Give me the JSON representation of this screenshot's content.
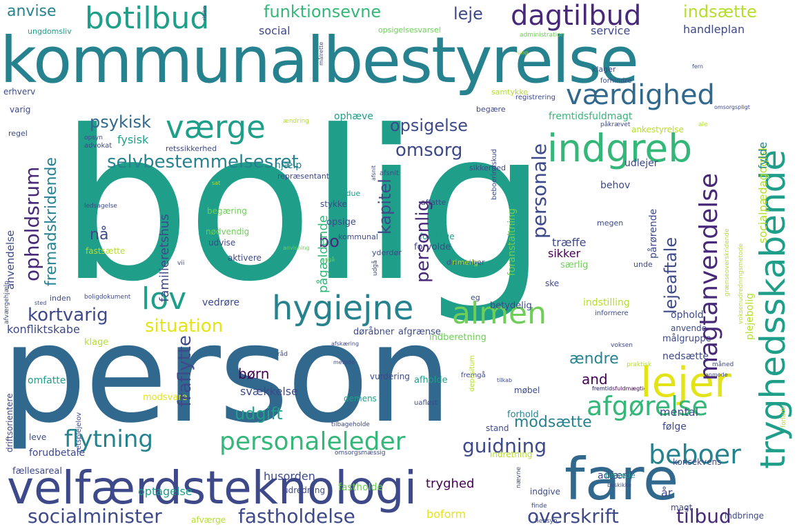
{
  "words": {
    "bolig": "bolig",
    "person": "person",
    "kommunalbestyrelse": "kommunalbestyrelse",
    "velfaerdsteknologi": "velfærdsteknologi",
    "fare": "fare",
    "botilbud": "botilbud",
    "fremtidsfuldmaegtig": "fremtidsfuldmægtig",
    "vaerdighed": "værdighed",
    "vaerge": "værge",
    "indgreb": "indgreb",
    "hygiejne": "hygiejne",
    "almen": "almen",
    "lejer": "lejer",
    "lov": "lov",
    "dagtilbud": "dagtilbud",
    "tryghedsskabende": "tryghedsskabende",
    "magtanvendelse": "magtanvendelse",
    "afgorelse": "afgørelse",
    "beboer": "beboer",
    "personaleleder": "personaleleder",
    "flytning": "flytning",
    "socialminister": "socialminister",
    "fastholdelse": "fastholdelse",
    "overskrift": "overskrift",
    "tilbud": "tilbud",
    "guidning": "guidning",
    "situation": "situation",
    "kortvarig": "kortvarig",
    "selvbestemmelsesret": "selvbestemmelsesret",
    "omsorg": "omsorg",
    "psykisk": "psykisk",
    "opsigelse": "opsigelse",
    "funktionsevne": "funktionsevne",
    "leje": "leje",
    "indsaette": "indsætte",
    "anvise": "anvise",
    "udgift": "udgift",
    "bo": "bo",
    "modsaette": "modsætte",
    "aendre": "ændre",
    "and": "and",
    "born": "børn",
    "svaekkelse": "svækkelse",
    "husorden": "husorden",
    "tryghed": "tryghed",
    "adfaerd": "adfærd",
    "optagelse": "optagelse",
    "boform": "boform",
    "fastholde": "fastholde",
    "udredning": "udredning",
    "konfliktskabe": "konfliktskabe",
    "vedrore": "vedrøre",
    "fysisk": "fysisk",
    "social": "social",
    "service": "service",
    "handleplan": "handleplan",
    "erhverv": "erhverv",
    "ophaeve": "ophæve",
    "hjaelp": "hjælp",
    "retssikkerhed": "retssikkerhed",
    "fremtidsfuldmagt": "fremtidsfuldmagt",
    "ankestyrelse": "ankestyrelse",
    "udlejer": "udlejer",
    "behov": "behov",
    "samtykke": "samtykke",
    "traeffe": "træffe",
    "sikker": "sikker",
    "saerlig": "særlig",
    "ske": "ske",
    "ophold": "ophold",
    "anvende": "anvende",
    "malgruppe": "målgruppe",
    "nedsaette": "nedsætte",
    "mental": "mental",
    "folge": "følge",
    "indstilling": "indstilling",
    "betydelig": "betydelig",
    "indberetning": "indberetning",
    "doraabner": "døråbner",
    "afgraense": "afgrænse",
    "afholde": "afholde",
    "forhold": "forhold",
    "mobel": "møbel",
    "vurdering": "vurdering",
    "demens": "demens",
    "modsvare": "modsvare",
    "omfatte": "omfatte",
    "leve": "leve",
    "forudbetale": "forudbetale",
    "faellesareal": "fællesareal",
    "klage": "klage",
    "inden": "inden",
    "eg": "eg",
    "opsige": "opsige",
    "begaering": "begæring",
    "nodvendig": "nødvendig",
    "udvise": "udvise",
    "aktivere": "aktivere",
    "fastsaette": "fastsætte",
    "yderdor": "yderdør",
    "forvolde": "forvolde",
    "foretage": "foretage",
    "december": "december",
    "rimelig": "rimelig",
    "unde": "unde",
    "megen": "megen",
    "stykke": "stykke",
    "vindue": "vindue",
    "affatte": "affatte",
    "kommunal": "kommunal",
    "repraesentant": "repræsentant",
    "sikkerhed": "sikkerhed",
    "varig": "varig",
    "regel": "regel",
    "begaere": "begære",
    "ungdomsliv": "ungdomsliv",
    "klager": "klager",
    "forhindre": "forhindre",
    "registrering": "registrering",
    "opsigelsesvarsel": "opsigelsesvarsel",
    "administration": "administration",
    "advokat": "advokat",
    "opsyn": "opsyn",
    "boligdokument": "boligdokument",
    "sted": "sted",
    "ledsagelse": "ledsagelse",
    "tilbageholde": "tilbageholde",
    "stand": "stand",
    "indretning": "indretning",
    "indgive": "indgive",
    "ar": "år",
    "magt": "magt",
    "tiltraede": "tiltræde",
    "konsekvens": "konsekvens",
    "indbringe": "indbringe",
    "hensyn": "hensyn",
    "finde": "finde",
    "afvaerge": "afværge",
    "uafloest": "uafløst",
    "omsorgsmaessig": "omsorgsmæssig",
    "fremgaa": "fremgå",
    "tilkab": "tilkab",
    "praktisk": "praktisk",
    "maaned": "måned",
    "anmode": "anmode",
    "voksen": "voksen",
    "informere": "informere",
    "fremtid": "fremtid",
    "beskikke": "beskikke",
    "raad": "råd",
    "metode": "metode",
    "afskaering": "afskæring",
    "aendring": "ændring",
    "paakraevet": "påkrævet",
    "ale": "ale",
    "omsorgspligt": "omsorgspligt",
    "ung": "ung",
    "sat": "sat",
    "vii": "vii",
    "fern": "fern",
    "anvisning": "anvisning",
    "udgaa": "udgå",
    "afsnit": "afsnit",
    "nar": "nå",
    "paarorende": "pårørende",
    "lejeaftale": "lejeaftale",
    "personale": "personale",
    "personlig": "personlig",
    "kapitel": "kapitel",
    "paagaeldende": "pågældende",
    "opholdsrum": "opholdsrum",
    "fremadskridende": "fremadskridende",
    "anvendelse": "anvendelse",
    "familieretshus": "familieretshus",
    "fraflytte": "fraflytte",
    "socialpaedagogisk": "socialpædagogisk",
    "fylde": "fylde",
    "plejebolig": "plejebolig",
    "graenseoverskridende": "grænseoverskridende",
    "foranstaltning": "foranstaltning",
    "beboerindskud": "beboerindskud",
    "depositum": "depositum",
    "retsplejelov": "retsplejelov",
    "driftsorientere": "driftsorientere",
    "afvaergehjaelp": "afværgehjælp",
    "voksenudredningsmetode": "voksenudredningsmetode",
    "forlade": "forlade",
    "naevne": "nævne",
    "malrette": "målrette",
    "risiko": "risiko",
    "afsnit2": "afsnit"
  },
  "palette": [
    "#440154",
    "#482878",
    "#3e4989",
    "#31688e",
    "#26828e",
    "#1f9e89",
    "#35b779",
    "#6ece58",
    "#b5de2b",
    "#e3e418"
  ]
}
